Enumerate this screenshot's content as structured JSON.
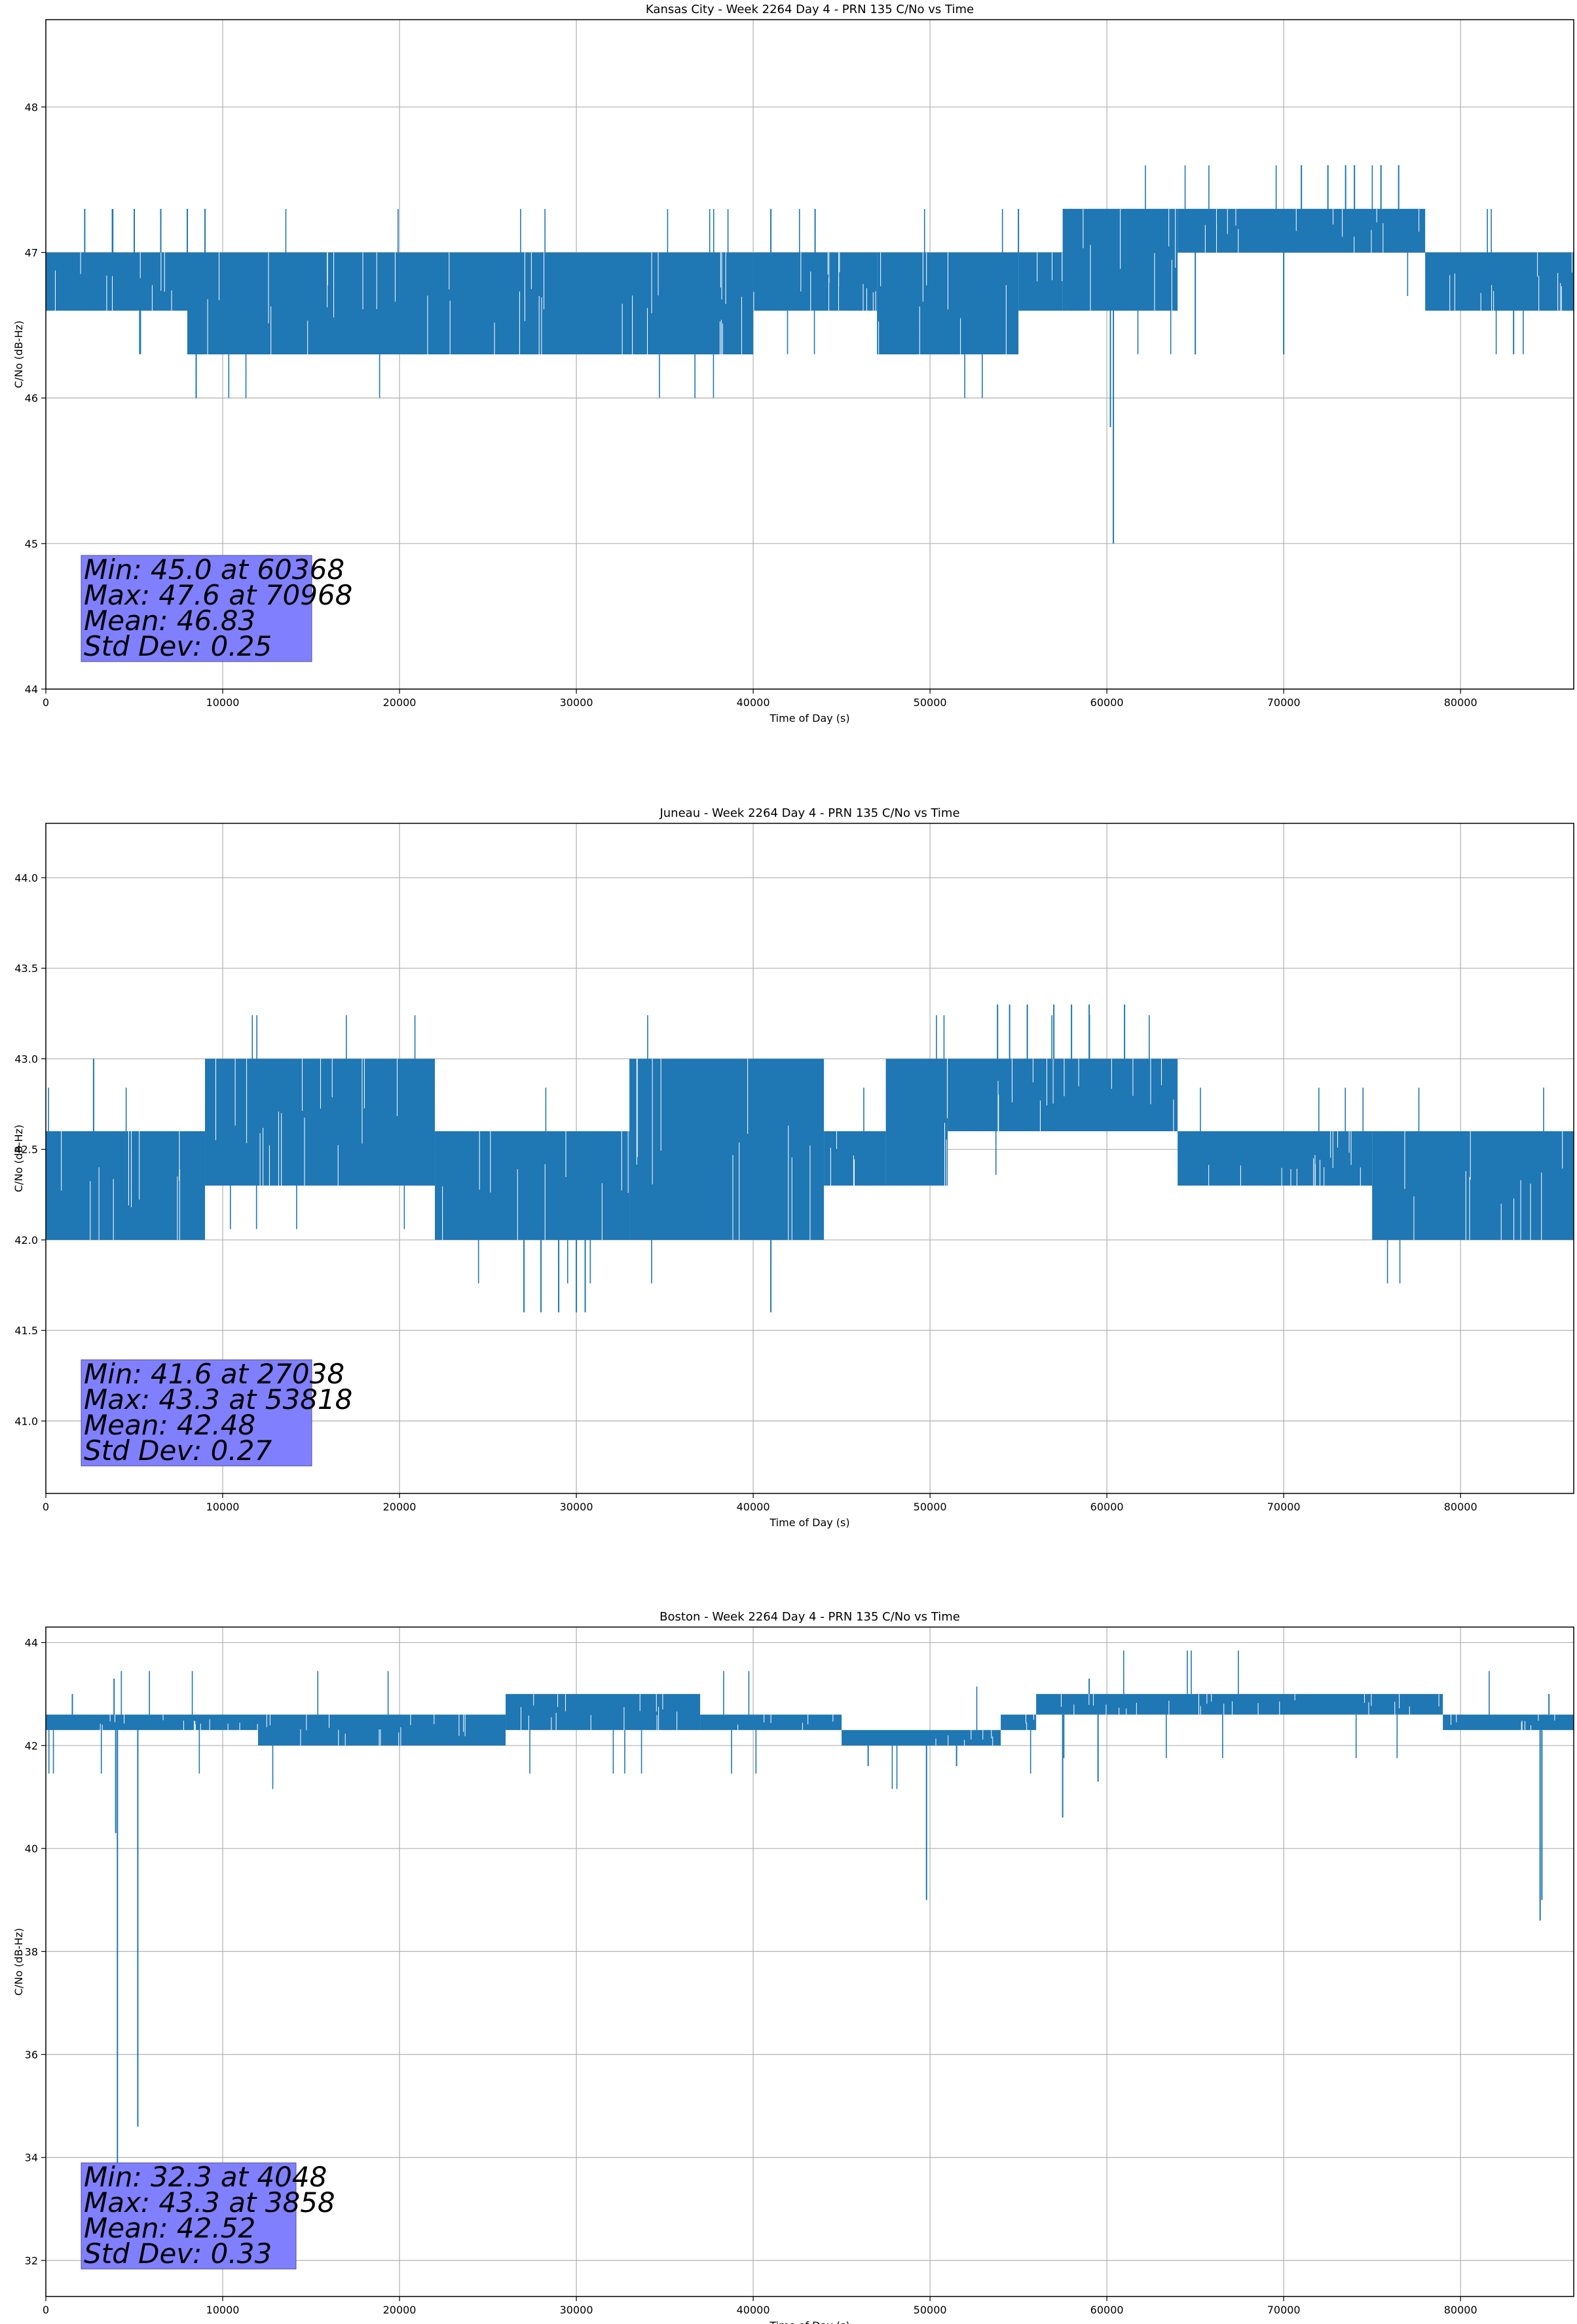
{
  "chart_data": [
    {
      "type": "line",
      "title": "Kansas City - Week 2264 Day 4 - PRN 135 C/No vs Time",
      "xlabel": "Time of Day (s)",
      "ylabel": "C/No (dB-Hz)",
      "xlim": [
        0,
        86400
      ],
      "ylim": [
        44,
        48.6
      ],
      "xticks": [
        0,
        10000,
        20000,
        30000,
        40000,
        50000,
        60000,
        70000,
        80000
      ],
      "yticks": [
        44,
        45,
        46,
        47,
        48
      ],
      "ytick_labels": [
        "44",
        "45",
        "46",
        "47",
        "48"
      ],
      "grid": true,
      "color": "#1f77b4",
      "stats": [
        "Min: 45.0 at 60368",
        "Max: 47.6 at 70968",
        "Mean: 46.83",
        "Std Dev: 0.25"
      ],
      "segments": [
        {
          "x": [
            0,
            8000
          ],
          "band": [
            46.6,
            47.0
          ]
        },
        {
          "x": [
            8000,
            40000
          ],
          "band": [
            46.3,
            47.0
          ]
        },
        {
          "x": [
            40000,
            47000
          ],
          "band": [
            46.6,
            47.0
          ]
        },
        {
          "x": [
            47000,
            55000
          ],
          "band": [
            46.3,
            47.0
          ]
        },
        {
          "x": [
            55000,
            57500
          ],
          "band": [
            46.6,
            47.0
          ]
        },
        {
          "x": [
            57500,
            64000
          ],
          "band": [
            46.6,
            47.3
          ]
        },
        {
          "x": [
            64000,
            78000
          ],
          "band": [
            47.0,
            47.3
          ]
        },
        {
          "x": [
            78000,
            86400
          ],
          "band": [
            46.6,
            47.0
          ]
        }
      ],
      "spikes": [
        [
          2200,
          47.3
        ],
        [
          5000,
          47.3
        ],
        [
          6500,
          47.3
        ],
        [
          8000,
          47.3
        ],
        [
          9000,
          47.3
        ],
        [
          8500,
          46.0
        ],
        [
          41000,
          47.3
        ],
        [
          43500,
          47.3
        ],
        [
          55000,
          47.3
        ],
        [
          58000,
          47.3
        ],
        [
          60368,
          45.0
        ],
        [
          60200,
          45.8
        ],
        [
          65000,
          46.3
        ],
        [
          70000,
          46.3
        ],
        [
          71000,
          47.6
        ],
        [
          72500,
          47.6
        ],
        [
          73500,
          47.6
        ],
        [
          74000,
          47.6
        ],
        [
          75500,
          47.6
        ],
        [
          76500,
          47.6
        ],
        [
          83000,
          46.3
        ]
      ]
    },
    {
      "type": "line",
      "title": "Juneau - Week 2264 Day 4 - PRN 135 C/No vs Time",
      "xlabel": "Time of Day (s)",
      "ylabel": "C/No (dB-Hz)",
      "xlim": [
        0,
        86400
      ],
      "ylim": [
        40.6,
        44.3
      ],
      "xticks": [
        0,
        10000,
        20000,
        30000,
        40000,
        50000,
        60000,
        70000,
        80000
      ],
      "yticks": [
        41.0,
        41.5,
        42.0,
        42.5,
        43.0,
        43.5,
        44.0
      ],
      "ytick_labels": [
        "41.0",
        "41.5",
        "42.0",
        "42.5",
        "43.0",
        "43.5",
        "44.0"
      ],
      "grid": true,
      "color": "#1f77b4",
      "stats": [
        "Min: 41.6 at 27038",
        "Max: 43.3 at 53818",
        "Mean: 42.48",
        "Std Dev: 0.27"
      ],
      "segments": [
        {
          "x": [
            0,
            9000
          ],
          "band": [
            42.0,
            42.6
          ]
        },
        {
          "x": [
            9000,
            22000
          ],
          "band": [
            42.3,
            43.0
          ]
        },
        {
          "x": [
            22000,
            33000
          ],
          "band": [
            42.0,
            42.6
          ]
        },
        {
          "x": [
            33000,
            44000
          ],
          "band": [
            42.0,
            43.0
          ]
        },
        {
          "x": [
            44000,
            47500
          ],
          "band": [
            42.3,
            42.6
          ]
        },
        {
          "x": [
            47500,
            51000
          ],
          "band": [
            42.3,
            43.0
          ]
        },
        {
          "x": [
            51000,
            64000
          ],
          "band": [
            42.6,
            43.0
          ]
        },
        {
          "x": [
            64000,
            75000
          ],
          "band": [
            42.3,
            42.6
          ]
        },
        {
          "x": [
            75000,
            86400
          ],
          "band": [
            42.0,
            42.6
          ]
        }
      ],
      "spikes": [
        [
          2700,
          43.0
        ],
        [
          27038,
          41.6
        ],
        [
          28000,
          41.6
        ],
        [
          29000,
          41.6
        ],
        [
          30000,
          41.6
        ],
        [
          30500,
          41.6
        ],
        [
          41000,
          41.6
        ],
        [
          53818,
          43.3
        ],
        [
          54500,
          43.3
        ],
        [
          55500,
          43.3
        ],
        [
          57000,
          43.3
        ],
        [
          58000,
          43.3
        ],
        [
          59000,
          43.3
        ],
        [
          61000,
          43.3
        ]
      ]
    },
    {
      "type": "line",
      "title": "Boston - Week 2264 Day 4 - PRN 135 C/No vs Time",
      "xlabel": "Time of Day (s)",
      "ylabel": "C/No (dB-Hz)",
      "xlim": [
        0,
        86400
      ],
      "ylim": [
        31.3,
        44.3
      ],
      "xticks": [
        0,
        10000,
        20000,
        30000,
        40000,
        50000,
        60000,
        70000,
        80000
      ],
      "yticks": [
        32,
        34,
        36,
        38,
        40,
        42,
        44
      ],
      "ytick_labels": [
        "32",
        "34",
        "36",
        "38",
        "40",
        "42",
        "44"
      ],
      "grid": true,
      "color": "#1f77b4",
      "stats": [
        "Min: 32.3 at 4048",
        "Max: 43.3 at 3858",
        "Mean: 42.52",
        "Std Dev: 0.33"
      ],
      "segments": [
        {
          "x": [
            0,
            12000
          ],
          "band": [
            42.3,
            42.6
          ]
        },
        {
          "x": [
            12000,
            26000
          ],
          "band": [
            42.0,
            42.6
          ]
        },
        {
          "x": [
            26000,
            37000
          ],
          "band": [
            42.3,
            43.0
          ]
        },
        {
          "x": [
            37000,
            45000
          ],
          "band": [
            42.3,
            42.6
          ]
        },
        {
          "x": [
            45000,
            54000
          ],
          "band": [
            42.0,
            42.3
          ]
        },
        {
          "x": [
            54000,
            56000
          ],
          "band": [
            42.3,
            42.6
          ]
        },
        {
          "x": [
            56000,
            79000
          ],
          "band": [
            42.6,
            43.0
          ]
        },
        {
          "x": [
            79000,
            86400
          ],
          "band": [
            42.3,
            42.6
          ]
        }
      ],
      "spikes": [
        [
          1500,
          43.0
        ],
        [
          3858,
          43.3
        ],
        [
          4048,
          32.3
        ],
        [
          3950,
          40.3
        ],
        [
          5200,
          34.6
        ],
        [
          46500,
          41.6
        ],
        [
          49800,
          39.0
        ],
        [
          51500,
          41.6
        ],
        [
          57500,
          40.6
        ],
        [
          59500,
          41.3
        ],
        [
          59000,
          43.3
        ],
        [
          84500,
          38.6
        ],
        [
          84600,
          39.0
        ],
        [
          85000,
          43.0
        ]
      ]
    }
  ]
}
